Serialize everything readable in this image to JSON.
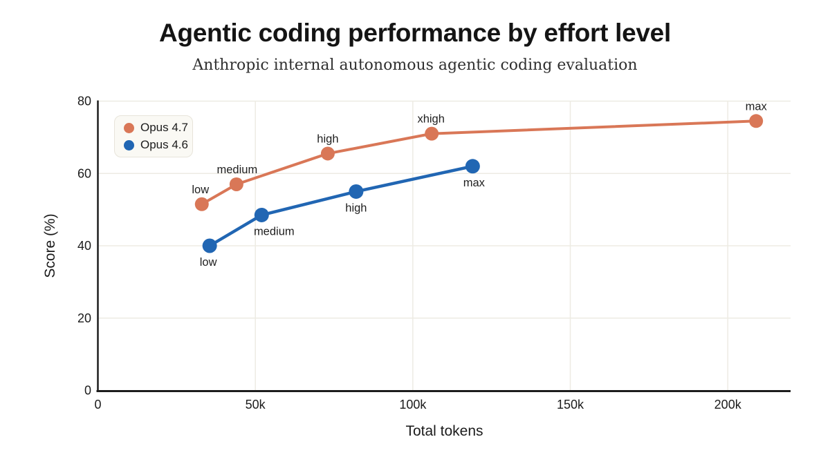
{
  "header": {
    "title": "Agentic coding performance by effort level",
    "subtitle": "Anthropic internal autonomous agentic coding evaluation"
  },
  "chart_data": {
    "type": "line",
    "title": "Agentic coding performance by effort level",
    "subtitle": "Anthropic internal autonomous agentic coding evaluation",
    "xlabel": "Total tokens",
    "ylabel": "Score (%)",
    "xlim_tokens": [
      0,
      220000
    ],
    "ylim": [
      0,
      80
    ],
    "grid": true,
    "legend_position": "top-left",
    "colors": {
      "grid": "#EDEBE3",
      "axis": "#1d1d1d",
      "text": "#1b1b1b",
      "legend_bg": "#FAF9F4",
      "legend_border": "#E7E4DA"
    },
    "x_ticks": [
      {
        "value": 0,
        "label": "0"
      },
      {
        "value": 50000,
        "label": "50k"
      },
      {
        "value": 100000,
        "label": "100k"
      },
      {
        "value": 150000,
        "label": "150k"
      },
      {
        "value": 200000,
        "label": "200k"
      }
    ],
    "y_ticks": [
      {
        "value": 0,
        "label": "0"
      },
      {
        "value": 20,
        "label": "20"
      },
      {
        "value": 40,
        "label": "40"
      },
      {
        "value": 60,
        "label": "60"
      },
      {
        "value": 80,
        "label": "80"
      }
    ],
    "series": [
      {
        "name": "Opus 4.7",
        "color": "#D97757",
        "marker_radius": 10,
        "line_width": 4,
        "points": [
          {
            "effort": "low",
            "tokens": 33000,
            "score": 51.5,
            "label_side": "above",
            "label_dx": -2
          },
          {
            "effort": "medium",
            "tokens": 44000,
            "score": 57,
            "label_side": "above",
            "label_dx": 1
          },
          {
            "effort": "high",
            "tokens": 73000,
            "score": 65.5,
            "label_side": "above",
            "label_dx": 0
          },
          {
            "effort": "xhigh",
            "tokens": 106000,
            "score": 71,
            "label_side": "above",
            "label_dx": -1
          },
          {
            "effort": "max",
            "tokens": 209000,
            "score": 74.5,
            "label_side": "above",
            "label_dx": 0
          }
        ]
      },
      {
        "name": "Opus 4.6",
        "color": "#2166B3",
        "marker_radius": 10.5,
        "line_width": 4.5,
        "points": [
          {
            "effort": "low",
            "tokens": 35500,
            "score": 40,
            "label_side": "below",
            "label_dx": -2
          },
          {
            "effort": "medium",
            "tokens": 52000,
            "score": 48.5,
            "label_side": "below",
            "label_dx": 18
          },
          {
            "effort": "high",
            "tokens": 82000,
            "score": 55,
            "label_side": "below",
            "label_dx": 0
          },
          {
            "effort": "max",
            "tokens": 119000,
            "score": 62,
            "label_side": "below",
            "label_dx": 2
          }
        ]
      }
    ]
  }
}
